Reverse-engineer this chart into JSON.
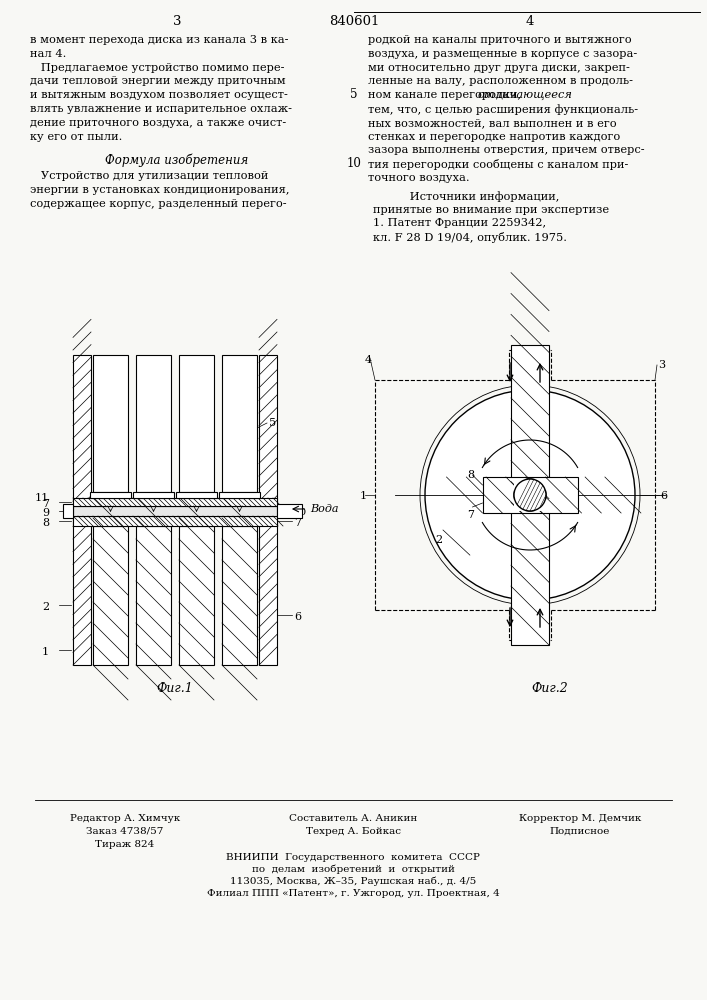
{
  "bg_color": "#f8f8f5",
  "page_number_left": "3",
  "patent_number": "840601",
  "page_number_right": "4",
  "col_left_text": [
    "в момент перехода диска из канала 3 в ка-",
    "нал 4.",
    "   Предлагаемое устройство помимо пере-",
    "дачи тепловой энергии между приточным",
    "и вытяжным воздухом позволяет осущест-",
    "влять увлажнение и испарительное охлаж-",
    "дение приточного воздуха, а также очист-",
    "ку его от пыли."
  ],
  "formula_title": "Формула изобретения",
  "formula_text": [
    "   Устройство для утилизации тепловой",
    "энергии в установках кондиционирования,",
    "содержащее корпус, разделенный перего-"
  ],
  "col_right_text": [
    "родкой на каналы приточного и вытяжного",
    "воздуха, и размещенные в корпусе с зазора-",
    "ми относительно друг друга диски, закреп-",
    "ленные на валу, расположенном в продоль-",
    "ном канале перегородки,              ",
    "тем, что, с целью расширения функциональ-",
    "ных возможностей, вал выполнен и в его",
    "стенках и перегородке напротив каждого",
    "зазора выполнены отверстия, причем отверс-",
    "тия перегородки сообщены с каналом при-",
    "точного воздуха."
  ],
  "italic_word": "отличающееся",
  "italic_line_idx": 4,
  "italic_prefix": "ном канале перегородки, ",
  "sources_title": "      Источники информации,",
  "sources_subtitle": "принятые во внимание при экспертизе",
  "source1": "1. Патент Франции 2259342,",
  "source2": "кл. F 28 D 19/04, опублик. 1975.",
  "line_number_5": "5",
  "line_number_10": "10",
  "fig1_label": "Фиг.1",
  "fig2_label": "Фиг.2",
  "editor_line": "Редактор А. Химчук",
  "compiler_line": "Составитель А. Аникин",
  "corrector_line": "Корректор М. Демчик",
  "order_line": "Заказ 4738/57",
  "techred_line": "Техред А. Бойкас",
  "podpisnoe_line": "Подписное",
  "tirazh_line": "Тираж 824",
  "vniiipi_line": "ВНИИПИ  Государственного  комитета  СССР",
  "vniiipi_line2": "по  делам  изобретений  и  открытий",
  "vniiipi_line3": "113035, Москва, Ж–35, Раушская наб., д. 4/5",
  "vniiipi_line4": "Филиал ППП «Патент», г. Ужгород, ул. Проектная, 4"
}
